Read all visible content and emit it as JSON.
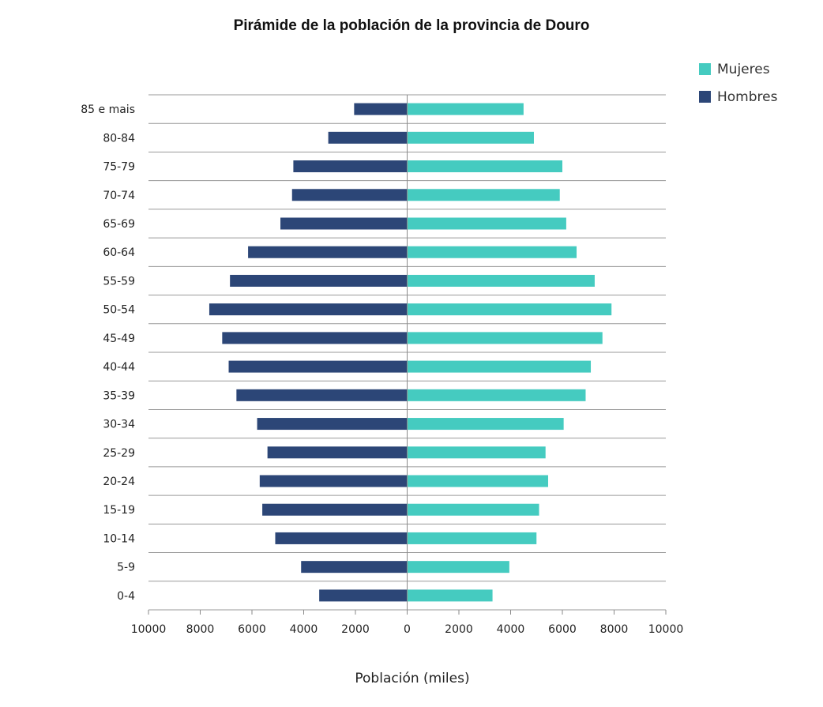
{
  "chart_data": {
    "type": "bar",
    "title": "Pirámide de la población de la provincia de Douro",
    "xlabel": "Población (miles)",
    "ylabel": "",
    "categories": [
      "0-4",
      "5-9",
      "10-14",
      "15-19",
      "20-24",
      "25-29",
      "30-34",
      "35-39",
      "40-44",
      "45-49",
      "50-54",
      "55-59",
      "60-64",
      "65-69",
      "70-74",
      "75-79",
      "80-84",
      "85 e mais"
    ],
    "series": [
      {
        "name": "Mujeres",
        "color": "#45CBC0",
        "values": [
          3300,
          3950,
          5000,
          5100,
          5450,
          5350,
          6050,
          6900,
          7100,
          7550,
          7900,
          7250,
          6550,
          6150,
          5900,
          6000,
          4900,
          4500
        ]
      },
      {
        "name": "Hombres",
        "color": "#2C4677",
        "values": [
          3400,
          4100,
          5100,
          5600,
          5700,
          5400,
          5800,
          6600,
          6900,
          7150,
          7650,
          6850,
          6150,
          4900,
          4450,
          4400,
          3050,
          2050
        ]
      }
    ],
    "xlim": [
      -10000,
      10000
    ],
    "xticks": [
      "10000",
      "8000",
      "6000",
      "4000",
      "2000",
      "0",
      "2000",
      "4000",
      "6000",
      "8000",
      "10000"
    ],
    "grid": "horizontal",
    "legend": "top-right"
  }
}
